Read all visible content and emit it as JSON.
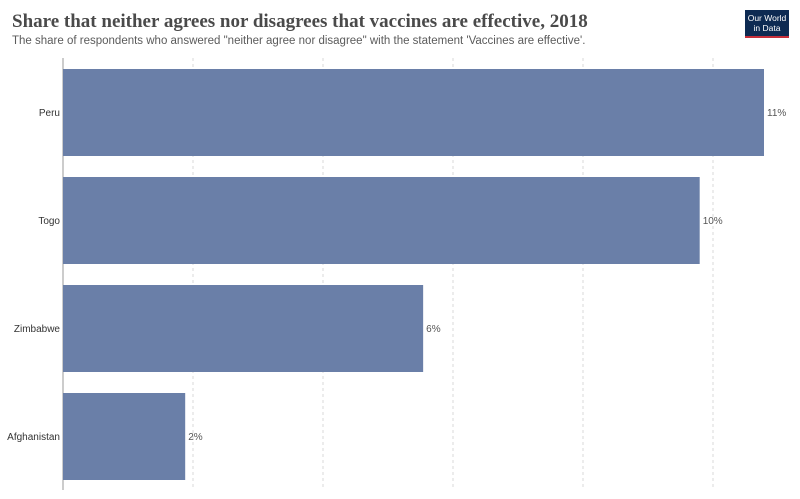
{
  "header": {
    "title": "Share that neither agrees nor disagrees that vaccines are effective, 2018",
    "subtitle": "The share of respondents who answered \"neither agree nor disagree\" with the statement 'Vaccines are effective'."
  },
  "logo": {
    "line1": "Our World",
    "line2": "in Data"
  },
  "colors": {
    "bar": "#6a7fa8",
    "grid": "#d9d9d9",
    "axis": "#999999"
  },
  "chart_data": {
    "type": "bar",
    "orientation": "horizontal",
    "categories": [
      "Peru",
      "Togo",
      "Zimbabwe",
      "Afghanistan"
    ],
    "values": [
      10.9,
      9.9,
      5.6,
      1.9
    ],
    "value_labels": [
      "11%",
      "10%",
      "6%",
      "2%"
    ],
    "xlim": [
      0,
      10.9
    ],
    "grid": true
  }
}
